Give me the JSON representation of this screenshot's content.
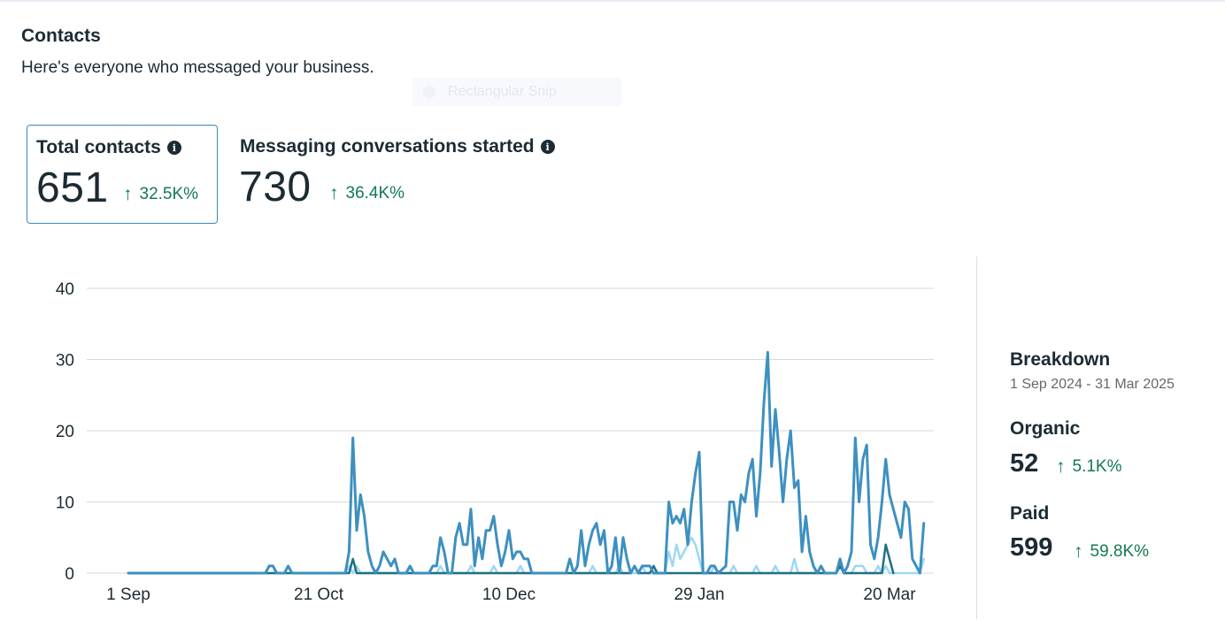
{
  "header": {
    "title": "Contacts",
    "subtitle": "Here's everyone who messaged your business.",
    "overlay_text": "Rectangular Snip"
  },
  "metrics": [
    {
      "label": "Total contacts",
      "value": "651",
      "change": "32.5K%",
      "selected": true
    },
    {
      "label": "Messaging conversations started",
      "value": "730",
      "change": "36.4K%",
      "selected": false
    }
  ],
  "icons": {
    "info": "info-icon",
    "trend": "arrow-up-icon"
  },
  "colors": {
    "accent": "#3a88b8",
    "positive": "#137a4f",
    "text": "#1c2b33",
    "total": "#3d90c0",
    "organic": "#9fd7f2",
    "paid": "#1f6f86"
  },
  "chart_data": {
    "type": "line",
    "title": "",
    "xlabel": "",
    "ylabel": "",
    "ylim": [
      0,
      40
    ],
    "yticks": [
      0,
      10,
      20,
      30,
      40
    ],
    "grid": true,
    "date_range": [
      "1 Sep 2024",
      "31 Mar 2025"
    ],
    "x_labels": [
      {
        "label": "1 Sep",
        "day": 0
      },
      {
        "label": "21 Oct",
        "day": 50
      },
      {
        "label": "10 Dec",
        "day": 100
      },
      {
        "label": "29 Jan",
        "day": 150
      },
      {
        "label": "20 Mar",
        "day": 200
      }
    ],
    "series": [
      {
        "name": "Total",
        "points": [
          [
            0,
            0
          ],
          [
            36,
            0
          ],
          [
            37,
            1
          ],
          [
            38,
            1
          ],
          [
            39,
            0
          ],
          [
            41,
            0
          ],
          [
            42,
            1
          ],
          [
            43,
            0
          ],
          [
            57,
            0
          ],
          [
            58,
            3
          ],
          [
            59,
            19
          ],
          [
            60,
            6
          ],
          [
            61,
            11
          ],
          [
            62,
            8
          ],
          [
            63,
            3
          ],
          [
            64,
            1
          ],
          [
            65,
            0
          ],
          [
            66,
            1
          ],
          [
            67,
            3
          ],
          [
            68,
            2
          ],
          [
            69,
            1
          ],
          [
            70,
            2
          ],
          [
            71,
            0
          ],
          [
            73,
            0
          ],
          [
            74,
            1
          ],
          [
            75,
            0
          ],
          [
            79,
            0
          ],
          [
            80,
            1
          ],
          [
            81,
            1
          ],
          [
            82,
            5
          ],
          [
            83,
            3
          ],
          [
            84,
            0
          ],
          [
            85,
            0
          ],
          [
            86,
            5
          ],
          [
            87,
            7
          ],
          [
            88,
            4
          ],
          [
            89,
            4
          ],
          [
            90,
            9
          ],
          [
            91,
            1
          ],
          [
            92,
            5
          ],
          [
            93,
            2
          ],
          [
            94,
            6
          ],
          [
            95,
            6
          ],
          [
            96,
            8
          ],
          [
            97,
            4
          ],
          [
            98,
            1
          ],
          [
            99,
            3
          ],
          [
            100,
            6
          ],
          [
            101,
            2
          ],
          [
            102,
            3
          ],
          [
            103,
            3
          ],
          [
            104,
            2
          ],
          [
            105,
            2
          ],
          [
            106,
            0
          ],
          [
            115,
            0
          ],
          [
            116,
            2
          ],
          [
            117,
            0
          ],
          [
            118,
            1
          ],
          [
            119,
            6
          ],
          [
            120,
            1
          ],
          [
            121,
            4
          ],
          [
            122,
            6
          ],
          [
            123,
            7
          ],
          [
            124,
            4
          ],
          [
            125,
            6
          ],
          [
            126,
            0
          ],
          [
            127,
            1
          ],
          [
            128,
            5
          ],
          [
            129,
            0
          ],
          [
            130,
            5
          ],
          [
            131,
            2
          ],
          [
            132,
            0
          ],
          [
            133,
            1
          ],
          [
            134,
            0
          ],
          [
            135,
            1
          ],
          [
            136,
            1
          ],
          [
            137,
            1
          ],
          [
            138,
            0
          ],
          [
            141,
            0
          ],
          [
            142,
            10
          ],
          [
            143,
            7
          ],
          [
            144,
            8
          ],
          [
            145,
            7
          ],
          [
            146,
            9
          ],
          [
            147,
            4
          ],
          [
            148,
            10
          ],
          [
            149,
            14
          ],
          [
            150,
            17
          ],
          [
            151,
            0
          ],
          [
            152,
            0
          ],
          [
            153,
            1
          ],
          [
            154,
            1
          ],
          [
            155,
            0
          ],
          [
            157,
            1
          ],
          [
            158,
            10
          ],
          [
            159,
            10
          ],
          [
            160,
            6
          ],
          [
            161,
            11
          ],
          [
            162,
            10
          ],
          [
            163,
            14
          ],
          [
            164,
            16
          ],
          [
            165,
            8
          ],
          [
            166,
            14
          ],
          [
            167,
            24
          ],
          [
            168,
            31
          ],
          [
            169,
            15
          ],
          [
            170,
            23
          ],
          [
            171,
            17
          ],
          [
            172,
            10
          ],
          [
            173,
            16
          ],
          [
            174,
            20
          ],
          [
            175,
            12
          ],
          [
            176,
            13
          ],
          [
            177,
            3
          ],
          [
            178,
            8
          ],
          [
            179,
            3
          ],
          [
            180,
            1
          ],
          [
            181,
            0
          ],
          [
            182,
            1
          ],
          [
            183,
            0
          ],
          [
            186,
            0
          ],
          [
            187,
            2
          ],
          [
            188,
            0
          ],
          [
            189,
            1
          ],
          [
            190,
            3
          ],
          [
            191,
            19
          ],
          [
            192,
            10
          ],
          [
            193,
            16
          ],
          [
            194,
            18
          ],
          [
            195,
            4
          ],
          [
            196,
            2
          ],
          [
            197,
            5
          ],
          [
            198,
            10
          ],
          [
            199,
            16
          ],
          [
            200,
            11
          ],
          [
            201,
            9
          ],
          [
            202,
            7
          ],
          [
            203,
            5
          ],
          [
            204,
            10
          ],
          [
            205,
            9
          ],
          [
            206,
            2
          ],
          [
            207,
            1
          ],
          [
            208,
            0
          ],
          [
            209,
            7
          ]
        ]
      },
      {
        "name": "Organic",
        "points": [
          [
            0,
            0
          ],
          [
            57,
            0
          ],
          [
            58,
            1
          ],
          [
            59,
            0
          ],
          [
            60,
            1
          ],
          [
            61,
            0
          ],
          [
            73,
            0
          ],
          [
            74,
            1
          ],
          [
            75,
            0
          ],
          [
            81,
            0
          ],
          [
            82,
            1
          ],
          [
            83,
            0
          ],
          [
            89,
            0
          ],
          [
            90,
            1
          ],
          [
            91,
            0
          ],
          [
            95,
            0
          ],
          [
            96,
            1
          ],
          [
            97,
            0
          ],
          [
            102,
            0
          ],
          [
            103,
            1
          ],
          [
            104,
            0
          ],
          [
            121,
            0
          ],
          [
            122,
            1
          ],
          [
            123,
            0
          ],
          [
            128,
            0
          ],
          [
            129,
            1
          ],
          [
            130,
            0
          ],
          [
            134,
            0
          ],
          [
            135,
            1
          ],
          [
            136,
            0
          ],
          [
            141,
            0
          ],
          [
            142,
            3
          ],
          [
            143,
            1
          ],
          [
            144,
            4
          ],
          [
            145,
            2
          ],
          [
            146,
            3
          ],
          [
            147,
            4
          ],
          [
            148,
            5
          ],
          [
            149,
            4
          ],
          [
            150,
            2
          ],
          [
            151,
            0
          ],
          [
            153,
            0
          ],
          [
            154,
            1
          ],
          [
            155,
            0
          ],
          [
            158,
            0
          ],
          [
            159,
            1
          ],
          [
            160,
            0
          ],
          [
            164,
            0
          ],
          [
            165,
            1
          ],
          [
            166,
            0
          ],
          [
            169,
            0
          ],
          [
            170,
            1
          ],
          [
            171,
            0
          ],
          [
            174,
            0
          ],
          [
            175,
            2
          ],
          [
            176,
            0
          ],
          [
            186,
            0
          ],
          [
            187,
            1
          ],
          [
            188,
            0
          ],
          [
            190,
            0
          ],
          [
            191,
            1
          ],
          [
            192,
            1
          ],
          [
            193,
            1
          ],
          [
            194,
            0
          ],
          [
            196,
            0
          ],
          [
            197,
            1
          ],
          [
            198,
            0
          ],
          [
            199,
            1
          ],
          [
            200,
            0
          ],
          [
            208,
            0
          ],
          [
            209,
            2
          ]
        ]
      },
      {
        "name": "Paid",
        "points": [
          [
            0,
            0
          ],
          [
            58,
            0
          ],
          [
            59,
            2
          ],
          [
            60,
            0
          ],
          [
            132,
            0
          ],
          [
            133,
            1
          ],
          [
            134,
            0
          ],
          [
            137,
            0
          ],
          [
            138,
            1
          ],
          [
            139,
            0
          ],
          [
            186,
            0
          ],
          [
            187,
            1
          ],
          [
            188,
            0
          ],
          [
            198,
            0
          ],
          [
            199,
            4
          ],
          [
            200,
            2
          ],
          [
            201,
            0
          ]
        ]
      }
    ]
  },
  "breakdown": {
    "title": "Breakdown",
    "date_range": "1 Sep 2024 - 31 Mar 2025",
    "organic": {
      "label": "Organic",
      "value": "52",
      "change": "5.1K%"
    },
    "paid": {
      "label": "Paid",
      "value": "599",
      "change": "59.8K%"
    }
  }
}
